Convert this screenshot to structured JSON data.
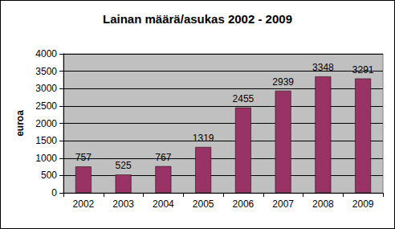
{
  "chart_data": {
    "type": "bar",
    "title": "Lainan määrä/asukas 2002 - 2009",
    "y_label": "euroa",
    "categories": [
      "2002",
      "2003",
      "2004",
      "2005",
      "2006",
      "2007",
      "2008",
      "2009"
    ],
    "values": [
      757,
      525,
      767,
      1319,
      2455,
      2939,
      3348,
      3291
    ],
    "color": "#993366",
    "ylim": [
      0,
      4000
    ],
    "yticks": [
      0,
      500,
      1000,
      1500,
      2000,
      2500,
      3000,
      3500,
      4000
    ],
    "grid": true,
    "data_labels": true
  }
}
